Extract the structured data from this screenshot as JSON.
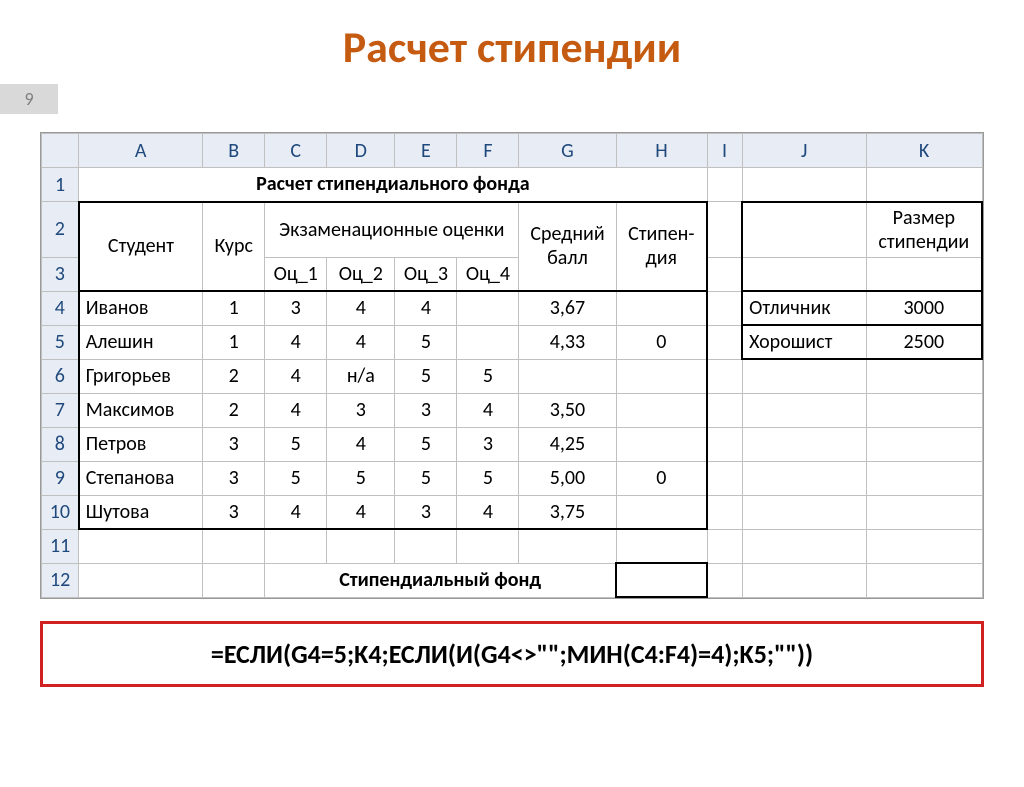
{
  "title": "Расчет стипендии",
  "slide_number": "9",
  "columns": [
    "A",
    "B",
    "C",
    "D",
    "E",
    "F",
    "G",
    "H",
    "I",
    "J",
    "K"
  ],
  "col_widths": [
    "120px",
    "60px",
    "60px",
    "66px",
    "60px",
    "60px",
    "94px",
    "88px",
    "34px",
    "120px",
    "112px"
  ],
  "merged_title": "Расчет стипендиального фонда",
  "hdr": {
    "student": "Студент",
    "course": "Курс",
    "exam_scores": "Экзаменационные оценки",
    "avg": "Средний балл",
    "stip": "Стипен-дия",
    "size": "Размер стипендии",
    "o1": "Оц_1",
    "o2": "Оц_2",
    "o3": "Оц_3",
    "o4": "Оц_4"
  },
  "rows": [
    {
      "n": "4",
      "name": "Иванов",
      "k": "1",
      "o1": "3",
      "o2": "4",
      "o3": "4",
      "o4": "",
      "avg": "3,67",
      "st": ""
    },
    {
      "n": "5",
      "name": "Алешин",
      "k": "1",
      "o1": "4",
      "o2": "4",
      "o3": "5",
      "o4": "",
      "avg": "4,33",
      "st": "0"
    },
    {
      "n": "6",
      "name": "Григорьев",
      "k": "2",
      "o1": "4",
      "o2": "н/а",
      "o3": "5",
      "o4": "5",
      "avg": "",
      "st": ""
    },
    {
      "n": "7",
      "name": "Максимов",
      "k": "2",
      "o1": "4",
      "o2": "3",
      "o3": "3",
      "o4": "4",
      "avg": "3,50",
      "st": ""
    },
    {
      "n": "8",
      "name": "Петров",
      "k": "3",
      "o1": "5",
      "o2": "4",
      "o3": "5",
      "o4": "3",
      "avg": "4,25",
      "st": ""
    },
    {
      "n": "9",
      "name": "Степанова",
      "k": "3",
      "o1": "5",
      "o2": "5",
      "o3": "5",
      "o4": "5",
      "avg": "5,00",
      "st": "0"
    },
    {
      "n": "10",
      "name": "Шутова",
      "k": "3",
      "o1": "4",
      "o2": "4",
      "o3": "3",
      "o4": "4",
      "avg": "3,75",
      "st": ""
    }
  ],
  "side": [
    {
      "label": "Отличник",
      "val": "3000"
    },
    {
      "label": "Хорошист",
      "val": "2500"
    }
  ],
  "footer_label": "Стипендиальный фонд",
  "formula": "=ЕСЛИ(G4=5;K4;ЕСЛИ(И(G4<>\"\";МИН(C4:F4)=4);K5;\"\"))",
  "colors": {
    "title": "#c55a11",
    "header_bg": "#e8edf5",
    "header_text": "#1f497d",
    "grid": "#c0c0c0",
    "formula_border": "#d02020",
    "slidenum_bg": "#d9d9d9"
  }
}
